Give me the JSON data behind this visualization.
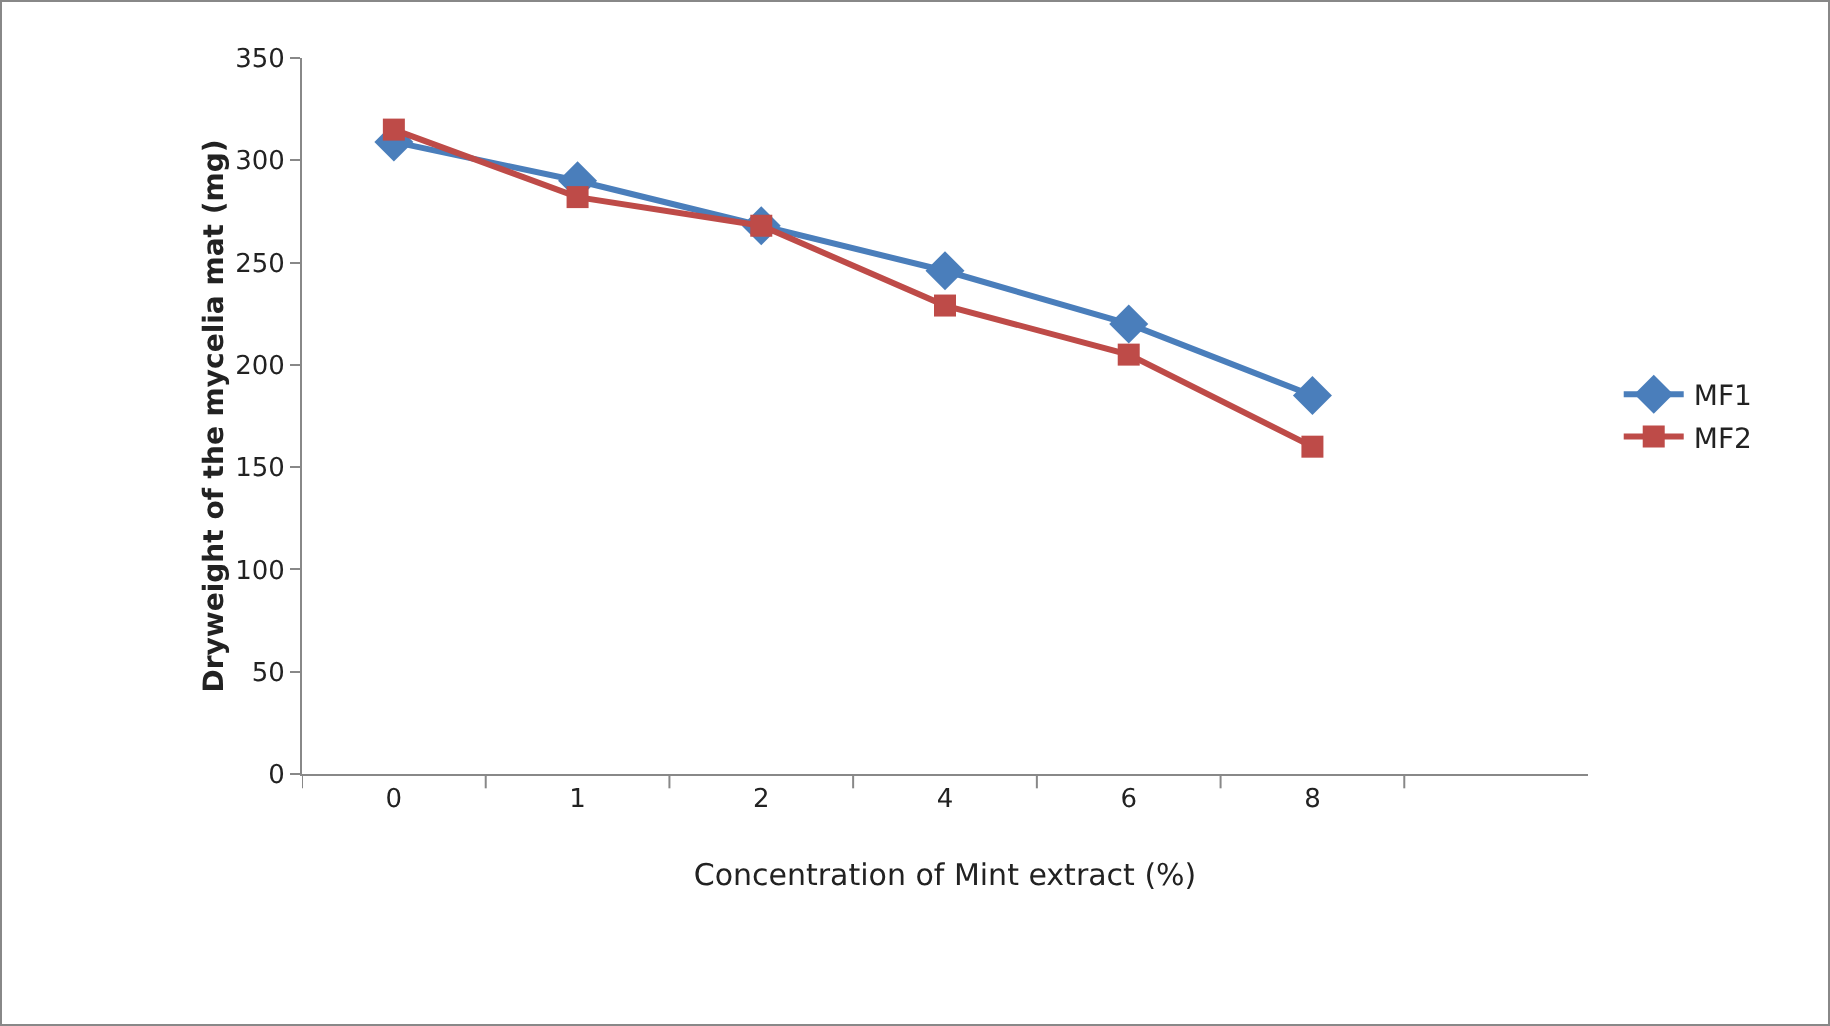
{
  "chart_data": {
    "type": "line",
    "xlabel": "Concentration of Mint extract (%)",
    "ylabel": "Dryweight of the mycelia mat (mg)",
    "categories": [
      "0",
      "1",
      "2",
      "4",
      "6",
      "8"
    ],
    "series": [
      {
        "name": "MF1",
        "color": "#4a7ebb",
        "values": [
          309,
          290,
          268,
          246,
          220,
          185
        ]
      },
      {
        "name": "MF2",
        "color": "#be4b48",
        "values": [
          315,
          282,
          268,
          229,
          205,
          160
        ]
      }
    ],
    "ylim": [
      0,
      350
    ],
    "yticks": [
      0,
      50,
      100,
      150,
      200,
      250,
      300,
      350
    ],
    "grid": false,
    "legend": "right",
    "marker": [
      "diamond",
      "square"
    ],
    "line_style": "solid"
  }
}
